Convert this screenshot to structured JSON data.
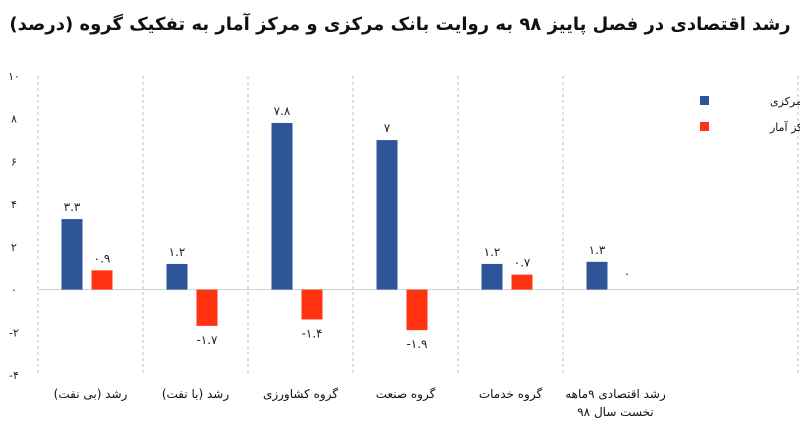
{
  "chart_data": {
    "type": "bar",
    "title": "رشد اقتصادی در فصل پاییز ۹۸ به روایت بانک مرکزی و مرکز آمار به تفکیک گروه (درصد)",
    "categories": [
      [
        "رشد (بی نفت)"
      ],
      [
        "رشد (با نفت)"
      ],
      [
        "گروه کشاورزی"
      ],
      [
        "گروه صنعت"
      ],
      [
        "گروه خدمات"
      ],
      [
        "رشد اقتصادی ۹ماهه",
        "نخست سال ۹۸"
      ]
    ],
    "series": [
      {
        "name": "بانک مرکزی",
        "color": "#2E5597",
        "values": [
          3.3,
          1.2,
          7.8,
          7,
          1.2,
          1.3
        ],
        "labels": [
          "۳.۳",
          "۱.۲",
          "۷.۸",
          "۷",
          "۱.۲",
          "۱.۳"
        ]
      },
      {
        "name": "مرکز آمار",
        "color": "#FF3311",
        "values": [
          0.9,
          -1.7,
          -1.4,
          -1.9,
          0.7,
          0
        ],
        "labels": [
          "۰.۹",
          "-۱.۷",
          "-۱.۴",
          "-۱.۹",
          "۰.۷",
          "۰"
        ]
      }
    ],
    "ylim": [
      -4,
      10
    ],
    "yticks": [
      10,
      8,
      6,
      4,
      2,
      0,
      -2,
      -4
    ],
    "ytick_labels": [
      "۱۰",
      "۸",
      "۶",
      "۴",
      "۲",
      "۰",
      "-۲",
      "-۴"
    ],
    "grid": "vertical-dashed",
    "legend": "right"
  }
}
